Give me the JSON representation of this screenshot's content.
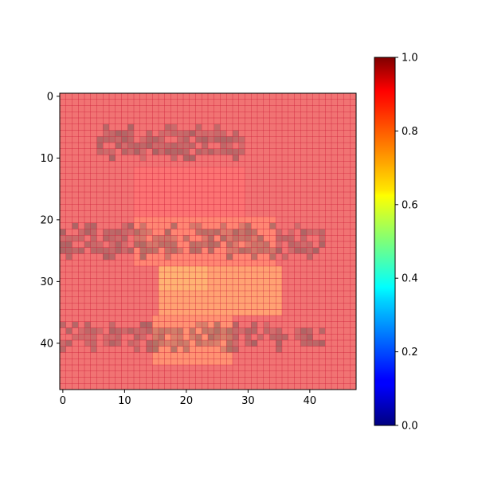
{
  "chart_data": {
    "type": "heatmap",
    "grid_size": [
      48,
      48
    ],
    "x_ticks": [
      0,
      10,
      20,
      30,
      40
    ],
    "y_ticks": [
      0,
      10,
      20,
      30,
      40
    ],
    "x_tick_labels": [
      "0",
      "10",
      "20",
      "30",
      "40"
    ],
    "y_tick_labels": [
      "0",
      "10",
      "20",
      "30",
      "40"
    ],
    "extent": [
      -0.5,
      47.5
    ],
    "colorbar": {
      "colormap": "jet",
      "range": [
        0,
        1
      ],
      "ticks": [
        0.0,
        0.2,
        0.4,
        0.6,
        0.8,
        1.0
      ],
      "tick_labels": [
        "0.0",
        "0.2",
        "0.4",
        "0.6",
        "0.8",
        "1.0"
      ]
    },
    "base_value": 0.9,
    "grid_lines": true,
    "grid_color": "#cc1f3a",
    "text_shadow_color": "#7a5a5a",
    "text_bands": [
      {
        "x_start": 6,
        "x_end": 29,
        "y_start": 5,
        "y_end": 10
      },
      {
        "x_start": 0,
        "x_end": 42,
        "y_start": 21,
        "y_end": 26
      },
      {
        "x_start": 0,
        "x_end": 42,
        "y_start": 37,
        "y_end": 41
      }
    ],
    "regions": [
      {
        "x_start": 12,
        "x_end": 30,
        "y_start": 12,
        "y_end": 20,
        "value": 0.88
      },
      {
        "x_start": 12,
        "x_end": 35,
        "y_start": 20,
        "y_end": 28,
        "value": 0.84
      },
      {
        "x_start": 16,
        "x_end": 36,
        "y_start": 28,
        "y_end": 36,
        "value": 0.79
      },
      {
        "x_start": 16,
        "x_end": 24,
        "y_start": 28,
        "y_end": 32,
        "value": 0.76
      },
      {
        "x_start": 15,
        "x_end": 28,
        "y_start": 36,
        "y_end": 44,
        "value": 0.82
      }
    ]
  }
}
